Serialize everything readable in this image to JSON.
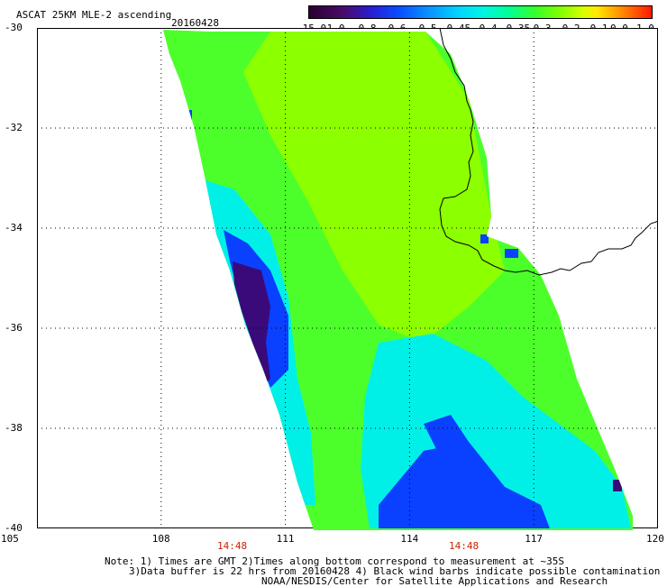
{
  "header": {
    "title": "ASCAT 25KM MLE-2 ascending",
    "date": "20160428"
  },
  "colorbar": {
    "labels": [
      "-15.0",
      "-1.0",
      "-0.8",
      "-0.6",
      "-0.5",
      "-0.45",
      "-0.4",
      "-0.35",
      "-0.3",
      "-0.2",
      "-0.1",
      "0.0",
      "1.0"
    ]
  },
  "axes": {
    "lat_labels": [
      "-30",
      "-32",
      "-34",
      "-36",
      "-38",
      "-40"
    ],
    "lon_labels": [
      "105",
      "108",
      "111",
      "114",
      "117",
      "120"
    ]
  },
  "time_labels": [
    "14:48",
    "14:48"
  ],
  "footer": {
    "line1": "Note: 1) Times are GMT 2)Times along bottom correspond to measurement at ~35S",
    "line2": "3)Data buffer is 22 hrs from 20160428 4) Black wind barbs indicate possible contamination",
    "line3": "NOAA/NESDIS/Center for Satellite Applications and Research"
  },
  "colors": {
    "background": "#ffffff",
    "time_label": "#cc2200",
    "coastline": "#000000",
    "green": "#4dff2a",
    "lime": "#8cff00",
    "cyan": "#00f0e8",
    "blue": "#0a40ff",
    "purple": "#3a0a7a"
  }
}
